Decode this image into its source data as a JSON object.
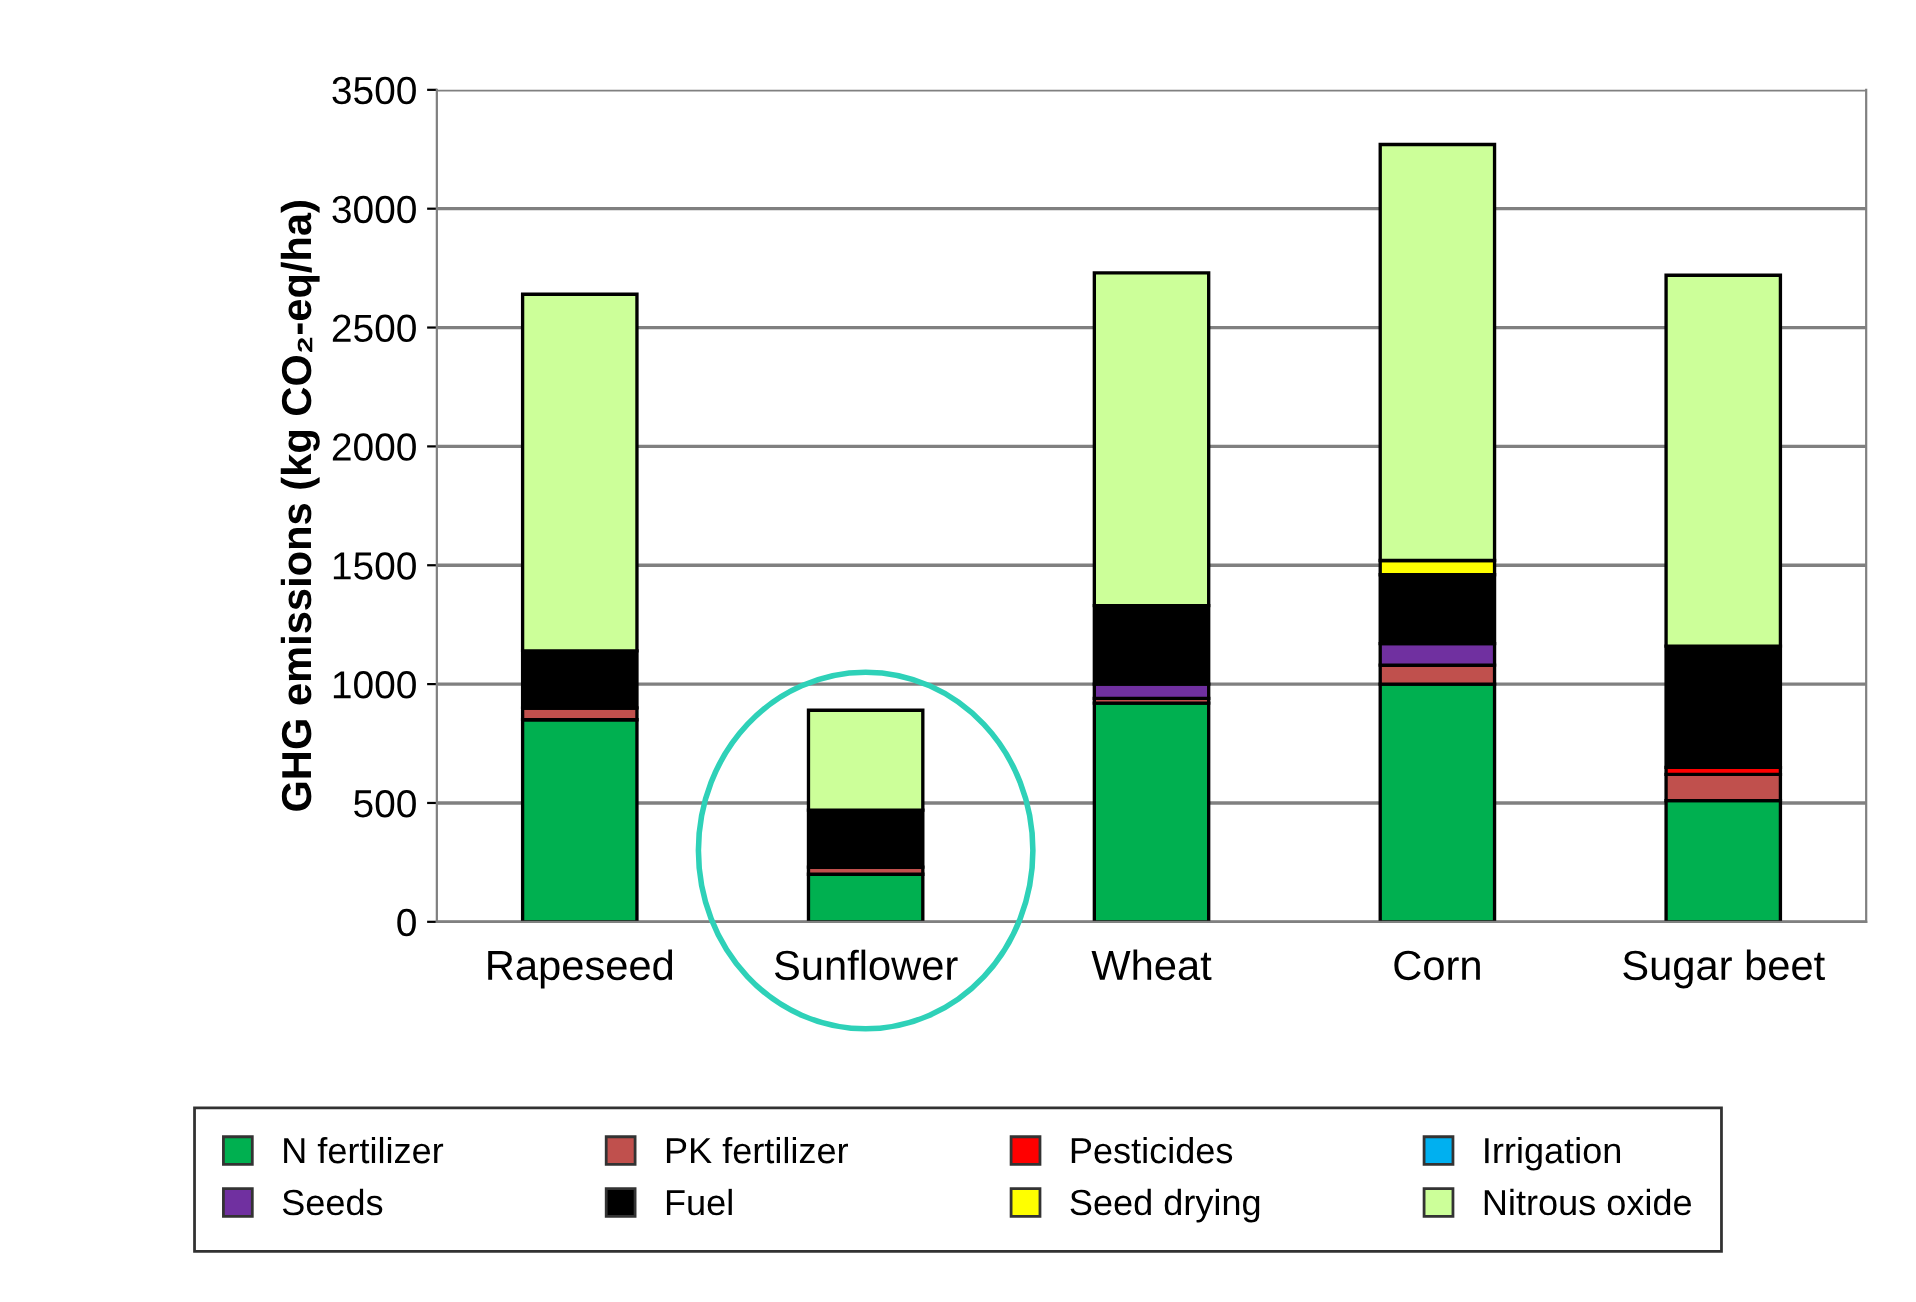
{
  "chart_data": {
    "type": "bar",
    "stacked": true,
    "ylabel": "GHG emissions (kg CO₂-eq/ha)",
    "categories": [
      "Rapeseed",
      "Sunflower",
      "Wheat",
      "Corn",
      "Sugar beet"
    ],
    "series": [
      {
        "name": "N fertilizer",
        "color": "#00b050",
        "values": [
          850,
          200,
          920,
          1000,
          510
        ]
      },
      {
        "name": "PK fertilizer",
        "color": "#c0504d",
        "values": [
          50,
          30,
          20,
          80,
          110
        ]
      },
      {
        "name": "Pesticides",
        "color": "#ff0000",
        "values": [
          null,
          0,
          null,
          0,
          30
        ]
      },
      {
        "name": "Irrigation",
        "color": "#00b0f0",
        "values": [
          0,
          0,
          0,
          0,
          0
        ]
      },
      {
        "name": "Seeds",
        "color": "#7030a0",
        "values": [
          0,
          0,
          60,
          90,
          0
        ]
      },
      {
        "name": "Fuel",
        "color": "#000000",
        "values": [
          240,
          240,
          330,
          290,
          510
        ]
      },
      {
        "name": "Seed drying",
        "color": "#ffff00",
        "values": [
          0,
          0,
          0,
          60,
          0
        ]
      },
      {
        "name": "Nitrous oxide",
        "color": "#ccff99",
        "values": [
          1500,
          420,
          1400,
          1750,
          1560
        ]
      }
    ],
    "ylim": [
      0,
      3500
    ],
    "yticks": [
      0,
      500,
      1000,
      1500,
      2000,
      2500,
      3000,
      3500
    ],
    "grid": "y",
    "legend": "bottom"
  }
}
